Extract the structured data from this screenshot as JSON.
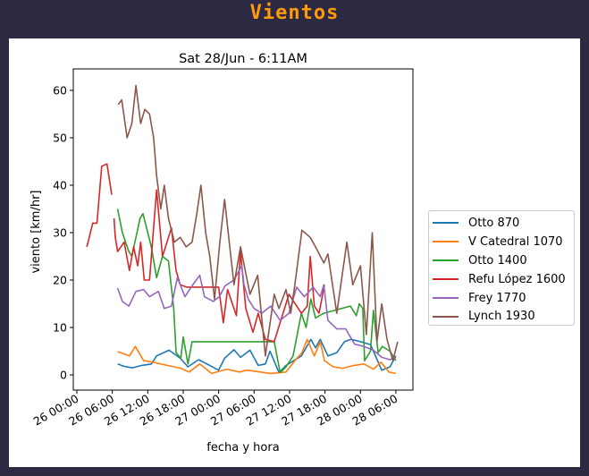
{
  "header": {
    "title": "Vientos"
  },
  "chart_data": {
    "type": "line",
    "title": "Sat 28/Jun - 6:11AM",
    "xlabel": "fecha y hora",
    "ylabel": "viento [km/hr]",
    "x_unit": "hours since 26 00:00",
    "xlim": [
      -0.6,
      57
    ],
    "ylim": [
      -3,
      64.5
    ],
    "yticks": [
      0,
      10,
      20,
      30,
      40,
      50,
      60
    ],
    "xticks": [
      {
        "h": 0,
        "label": "26 00:00"
      },
      {
        "h": 6,
        "label": "26 06:00"
      },
      {
        "h": 12,
        "label": "26 12:00"
      },
      {
        "h": 18,
        "label": "26 18:00"
      },
      {
        "h": 24,
        "label": "27 00:00"
      },
      {
        "h": 30,
        "label": "27 06:00"
      },
      {
        "h": 36,
        "label": "27 12:00"
      },
      {
        "h": 42,
        "label": "27 18:00"
      },
      {
        "h": 48,
        "label": "28 00:00"
      },
      {
        "h": 54,
        "label": "28 06:00"
      }
    ],
    "legend_position": "right",
    "series": [
      {
        "name": "Otto 870",
        "color": "#1f77b4",
        "points": [
          [
            6.9,
            2.3
          ],
          [
            8,
            1.8
          ],
          [
            9.4,
            1.5
          ],
          [
            11,
            2
          ],
          [
            12.6,
            2.3
          ],
          [
            13.5,
            4
          ],
          [
            15.6,
            5.2
          ],
          [
            17.5,
            3.5
          ],
          [
            18.8,
            1.7
          ],
          [
            20.6,
            3.2
          ],
          [
            22.5,
            2
          ],
          [
            24,
            1
          ],
          [
            25,
            3.5
          ],
          [
            26.6,
            5.3
          ],
          [
            27.7,
            3.7
          ],
          [
            29.3,
            5.2
          ],
          [
            30.7,
            2
          ],
          [
            31.9,
            2.3
          ],
          [
            32.7,
            5
          ],
          [
            34.2,
            0.5
          ],
          [
            35.4,
            2
          ],
          [
            38,
            4
          ],
          [
            39.6,
            7.5
          ],
          [
            40.4,
            5.7
          ],
          [
            41.2,
            7.5
          ],
          [
            42.5,
            4
          ],
          [
            44,
            4.7
          ],
          [
            45.3,
            7
          ],
          [
            46.4,
            7.5
          ],
          [
            48,
            7
          ],
          [
            49.7,
            6.4
          ],
          [
            51.6,
            1
          ],
          [
            53,
            1.7
          ],
          [
            54,
            4
          ]
        ]
      },
      {
        "name": "V Catedral 1070",
        "color": "#ff7f0e",
        "points": [
          [
            6.9,
            4.9
          ],
          [
            8.9,
            4
          ],
          [
            9.9,
            6
          ],
          [
            11.3,
            3
          ],
          [
            12.8,
            2.7
          ],
          [
            15.3,
            2
          ],
          [
            17.6,
            1.4
          ],
          [
            19,
            0.6
          ],
          [
            20.8,
            2.3
          ],
          [
            22.8,
            0.3
          ],
          [
            25.4,
            1.2
          ],
          [
            27.5,
            0.6
          ],
          [
            28.8,
            1
          ],
          [
            32.8,
            0.3
          ],
          [
            35.4,
            0.6
          ],
          [
            36.9,
            3
          ],
          [
            38.1,
            4.7
          ],
          [
            39,
            7.5
          ],
          [
            40.2,
            4
          ],
          [
            41.2,
            7
          ],
          [
            41.9,
            3
          ],
          [
            43.4,
            1.7
          ],
          [
            45,
            1.4
          ],
          [
            46.9,
            2
          ],
          [
            48.6,
            2.3
          ],
          [
            50.2,
            1.2
          ],
          [
            51.5,
            2.7
          ],
          [
            52.8,
            0.6
          ],
          [
            54,
            0.3
          ]
        ]
      },
      {
        "name": "Otto 1400",
        "color": "#2ca02c",
        "points": [
          [
            6.9,
            35
          ],
          [
            7.7,
            30
          ],
          [
            8.8,
            26
          ],
          [
            9.3,
            25
          ],
          [
            10.7,
            33
          ],
          [
            11.2,
            34
          ],
          [
            12.6,
            27
          ],
          [
            13.5,
            20.5
          ],
          [
            14.5,
            25
          ],
          [
            15.5,
            24
          ],
          [
            16.4,
            14
          ],
          [
            16.8,
            4.7
          ],
          [
            17.6,
            3.5
          ],
          [
            18,
            8
          ],
          [
            18.8,
            2.3
          ],
          [
            19.5,
            7
          ],
          [
            33.4,
            7
          ],
          [
            34.4,
            0.5
          ],
          [
            35.4,
            1.7
          ],
          [
            36.6,
            4
          ],
          [
            38,
            13
          ],
          [
            38.8,
            10
          ],
          [
            39.6,
            16
          ],
          [
            40.4,
            12
          ],
          [
            41.8,
            13
          ],
          [
            46.3,
            14.5
          ],
          [
            47.3,
            12.5
          ],
          [
            47.8,
            15
          ],
          [
            48.4,
            14
          ],
          [
            48.7,
            3
          ],
          [
            49.7,
            5
          ],
          [
            50.2,
            13.6
          ],
          [
            51,
            4.7
          ],
          [
            51.7,
            6
          ],
          [
            53,
            5
          ],
          [
            54,
            3
          ]
        ]
      },
      {
        "name": "Refu López 1600",
        "color": "#d62728",
        "points": [
          [
            1.7,
            27
          ],
          [
            2.7,
            32
          ],
          [
            3.4,
            32
          ],
          [
            4.2,
            44
          ],
          [
            5.1,
            44.5
          ],
          [
            5.9,
            38
          ],
          null,
          [
            6.3,
            33
          ],
          [
            6.5,
            29
          ],
          [
            6.9,
            26
          ],
          [
            8,
            28
          ],
          [
            8.9,
            22
          ],
          [
            9.6,
            27
          ],
          [
            10.3,
            23
          ],
          [
            10.8,
            28
          ],
          [
            11.4,
            20
          ],
          [
            12.3,
            20
          ],
          [
            13.5,
            39
          ],
          [
            14.5,
            25
          ],
          [
            16,
            31
          ],
          [
            16.8,
            22
          ],
          [
            17.5,
            19
          ],
          [
            18.6,
            18.5
          ],
          [
            24,
            18.5
          ],
          [
            24.8,
            11
          ],
          [
            25.5,
            18
          ],
          [
            27,
            12.5
          ],
          [
            27.7,
            26
          ],
          [
            28.6,
            14
          ],
          [
            29.8,
            9
          ],
          [
            30.7,
            13
          ],
          [
            31.9,
            7.5
          ],
          [
            33.4,
            7
          ],
          [
            35.9,
            17
          ],
          [
            38,
            13
          ],
          [
            39,
            14.5
          ],
          [
            39.5,
            25
          ],
          [
            40.2,
            14.5
          ],
          [
            41,
            13
          ],
          [
            41.9,
            19
          ]
        ]
      },
      {
        "name": "Frey 1770",
        "color": "#9467bd",
        "points": [
          [
            6.9,
            18.3
          ],
          [
            7.7,
            15.5
          ],
          [
            8.8,
            14.5
          ],
          [
            10,
            17.6
          ],
          [
            11.3,
            18
          ],
          [
            12.3,
            16.5
          ],
          [
            13.8,
            17.6
          ],
          [
            14.8,
            14
          ],
          [
            16,
            14.5
          ],
          [
            17,
            20.5
          ],
          [
            18.3,
            16.5
          ],
          [
            19.5,
            18.8
          ],
          [
            20.8,
            21
          ],
          [
            21.6,
            16.5
          ],
          [
            23.1,
            15.5
          ],
          [
            24.1,
            16.5
          ],
          [
            25.1,
            18.8
          ],
          [
            26.6,
            20
          ],
          [
            27.9,
            23
          ],
          [
            28.3,
            19
          ],
          [
            29,
            16
          ],
          [
            30,
            14
          ],
          [
            31.3,
            13
          ],
          [
            32.8,
            14.5
          ],
          [
            34.4,
            11.5
          ],
          [
            35.9,
            13
          ],
          [
            37.2,
            18.5
          ],
          [
            38.5,
            16.5
          ],
          [
            40,
            18.5
          ],
          [
            41.2,
            16.5
          ],
          [
            41.8,
            19
          ],
          [
            42.5,
            11.5
          ],
          [
            44,
            9.7
          ],
          [
            45.5,
            9.7
          ],
          [
            47,
            6.5
          ],
          [
            48.6,
            6
          ],
          [
            50.2,
            5.2
          ],
          [
            51.6,
            3.7
          ],
          [
            53,
            3.2
          ],
          [
            54,
            3.7
          ]
        ]
      },
      {
        "name": "Lynch 1930",
        "color": "#8c564b",
        "points": [
          [
            7,
            57
          ],
          [
            7.6,
            58
          ],
          [
            8.5,
            50
          ],
          [
            9.3,
            53
          ],
          [
            10,
            61
          ],
          [
            10.8,
            53
          ],
          [
            11.5,
            56
          ],
          [
            12.3,
            55
          ],
          [
            13,
            50
          ],
          [
            13.5,
            42
          ],
          [
            14.2,
            35
          ],
          [
            14.8,
            40
          ],
          [
            15.5,
            33
          ],
          [
            16.5,
            28
          ],
          [
            17.5,
            29
          ],
          [
            18.5,
            27
          ],
          [
            19.5,
            28
          ],
          [
            20.3,
            34
          ],
          [
            21,
            40
          ],
          [
            21.8,
            30
          ],
          [
            22.5,
            25
          ],
          [
            23.3,
            16
          ],
          [
            24.2,
            28
          ],
          [
            25,
            37
          ],
          [
            25.8,
            28
          ],
          [
            26.6,
            19
          ],
          [
            27.7,
            27
          ],
          [
            29.3,
            17
          ],
          [
            30.6,
            21
          ],
          [
            31.9,
            4
          ],
          [
            33.4,
            17
          ],
          [
            34.2,
            14
          ],
          [
            35.4,
            18
          ],
          [
            36.2,
            13
          ],
          [
            36.9,
            19
          ],
          [
            38.1,
            30.5
          ],
          [
            39.5,
            29
          ],
          [
            40.4,
            27
          ],
          [
            41.8,
            23.6
          ],
          [
            42.5,
            25.5
          ],
          [
            44,
            13
          ],
          [
            45.7,
            28
          ],
          [
            46.7,
            19
          ],
          [
            48,
            23
          ],
          [
            49,
            8.5
          ],
          [
            50,
            30
          ],
          [
            50.8,
            7
          ],
          [
            51.6,
            15
          ],
          [
            52.5,
            7.5
          ],
          [
            53.5,
            3
          ],
          [
            54.3,
            7
          ]
        ]
      }
    ]
  }
}
